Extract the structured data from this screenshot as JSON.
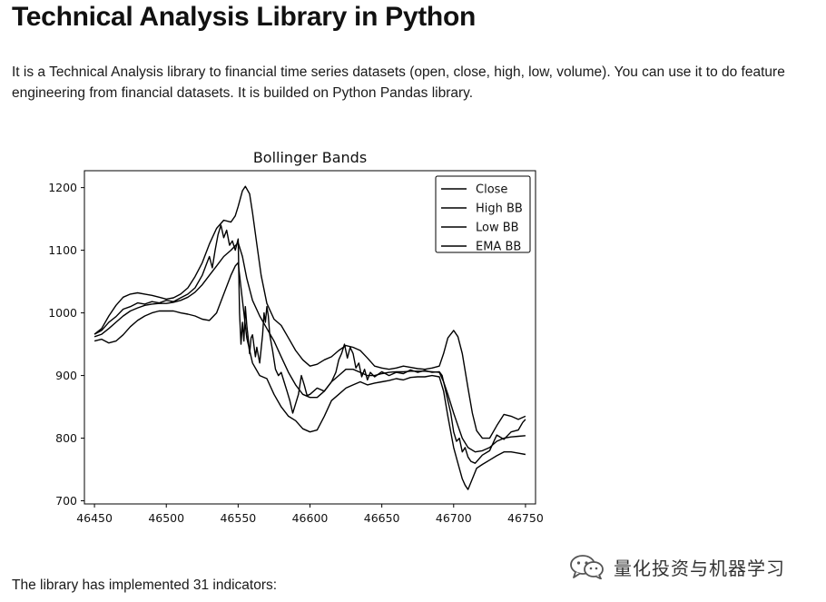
{
  "page": {
    "title": "Technical Analysis Library in Python",
    "intro": "It is a Technical Analysis library to financial time series datasets (open, close, high, low, volume). You can use it to do feature engineering from financial datasets. It is builded on Python Pandas library.",
    "footer": "The library has implemented 31 indicators:"
  },
  "watermark": {
    "text": "量化投资与机器学习",
    "icon": "wechat-icon"
  },
  "colors": {
    "text": "#111111",
    "line": "#000000",
    "background": "#ffffff"
  },
  "chart_data": {
    "type": "line",
    "title": "Bollinger Bands",
    "xlabel": "",
    "ylabel": "",
    "xlim": [
      46443,
      46757
    ],
    "ylim": [
      695,
      1227
    ],
    "xticks": [
      46450,
      46500,
      46550,
      46600,
      46650,
      46700,
      46750
    ],
    "yticks": [
      700,
      800,
      900,
      1000,
      1100,
      1200
    ],
    "grid": false,
    "legend_position": "top-right",
    "series": [
      {
        "name": "Close",
        "points": [
          [
            46450,
            966
          ],
          [
            46455,
            972
          ],
          [
            46460,
            985
          ],
          [
            46465,
            994
          ],
          [
            46470,
            1006
          ],
          [
            46475,
            1010
          ],
          [
            46480,
            1016
          ],
          [
            46485,
            1014
          ],
          [
            46490,
            1018
          ],
          [
            46495,
            1016
          ],
          [
            46500,
            1020
          ],
          [
            46505,
            1018
          ],
          [
            46510,
            1024
          ],
          [
            46515,
            1030
          ],
          [
            46520,
            1040
          ],
          [
            46525,
            1060
          ],
          [
            46528,
            1078
          ],
          [
            46530,
            1090
          ],
          [
            46532,
            1072
          ],
          [
            46534,
            1100
          ],
          [
            46536,
            1125
          ],
          [
            46538,
            1140
          ],
          [
            46540,
            1120
          ],
          [
            46542,
            1132
          ],
          [
            46544,
            1108
          ],
          [
            46546,
            1115
          ],
          [
            46548,
            1100
          ],
          [
            46550,
            1118
          ],
          [
            46551,
            1000
          ],
          [
            46552,
            950
          ],
          [
            46553,
            985
          ],
          [
            46554,
            955
          ],
          [
            46555,
            1010
          ],
          [
            46556,
            980
          ],
          [
            46557,
            960
          ],
          [
            46558,
            935
          ],
          [
            46559,
            960
          ],
          [
            46560,
            965
          ],
          [
            46562,
            930
          ],
          [
            46563,
            945
          ],
          [
            46565,
            920
          ],
          [
            46567,
            965
          ],
          [
            46568,
            1000
          ],
          [
            46569,
            985
          ],
          [
            46570,
            1010
          ],
          [
            46571,
            995
          ],
          [
            46572,
            965
          ],
          [
            46574,
            940
          ],
          [
            46576,
            910
          ],
          [
            46578,
            900
          ],
          [
            46580,
            905
          ],
          [
            46582,
            890
          ],
          [
            46584,
            875
          ],
          [
            46586,
            860
          ],
          [
            46588,
            840
          ],
          [
            46590,
            855
          ],
          [
            46592,
            870
          ],
          [
            46594,
            900
          ],
          [
            46596,
            885
          ],
          [
            46598,
            868
          ],
          [
            46600,
            870
          ],
          [
            46605,
            880
          ],
          [
            46610,
            875
          ],
          [
            46615,
            890
          ],
          [
            46618,
            905
          ],
          [
            46620,
            925
          ],
          [
            46622,
            935
          ],
          [
            46624,
            950
          ],
          [
            46626,
            928
          ],
          [
            46628,
            945
          ],
          [
            46630,
            935
          ],
          [
            46632,
            912
          ],
          [
            46634,
            920
          ],
          [
            46636,
            898
          ],
          [
            46638,
            910
          ],
          [
            46640,
            893
          ],
          [
            46642,
            905
          ],
          [
            46645,
            898
          ],
          [
            46650,
            906
          ],
          [
            46655,
            900
          ],
          [
            46660,
            905
          ],
          [
            46665,
            903
          ],
          [
            46670,
            909
          ],
          [
            46675,
            905
          ],
          [
            46680,
            908
          ],
          [
            46685,
            905
          ],
          [
            46690,
            906
          ],
          [
            46692,
            900
          ],
          [
            46694,
            880
          ],
          [
            46696,
            860
          ],
          [
            46698,
            840
          ],
          [
            46700,
            810
          ],
          [
            46702,
            795
          ],
          [
            46704,
            800
          ],
          [
            46706,
            778
          ],
          [
            46708,
            785
          ],
          [
            46710,
            770
          ],
          [
            46712,
            763
          ],
          [
            46715,
            760
          ],
          [
            46720,
            773
          ],
          [
            46725,
            780
          ],
          [
            46730,
            805
          ],
          [
            46735,
            798
          ],
          [
            46740,
            810
          ],
          [
            46745,
            813
          ],
          [
            46748,
            825
          ],
          [
            46750,
            830
          ]
        ]
      },
      {
        "name": "High BB",
        "points": [
          [
            46450,
            966
          ],
          [
            46455,
            975
          ],
          [
            46460,
            995
          ],
          [
            46465,
            1012
          ],
          [
            46470,
            1025
          ],
          [
            46475,
            1030
          ],
          [
            46480,
            1032
          ],
          [
            46485,
            1030
          ],
          [
            46490,
            1028
          ],
          [
            46495,
            1025
          ],
          [
            46500,
            1022
          ],
          [
            46505,
            1024
          ],
          [
            46510,
            1030
          ],
          [
            46515,
            1040
          ],
          [
            46520,
            1058
          ],
          [
            46525,
            1080
          ],
          [
            46530,
            1110
          ],
          [
            46535,
            1135
          ],
          [
            46540,
            1148
          ],
          [
            46545,
            1145
          ],
          [
            46548,
            1155
          ],
          [
            46550,
            1170
          ],
          [
            46553,
            1195
          ],
          [
            46555,
            1202
          ],
          [
            46558,
            1190
          ],
          [
            46560,
            1160
          ],
          [
            46563,
            1110
          ],
          [
            46566,
            1060
          ],
          [
            46570,
            1015
          ],
          [
            46575,
            990
          ],
          [
            46580,
            980
          ],
          [
            46585,
            960
          ],
          [
            46590,
            940
          ],
          [
            46595,
            925
          ],
          [
            46600,
            915
          ],
          [
            46605,
            918
          ],
          [
            46610,
            925
          ],
          [
            46615,
            930
          ],
          [
            46620,
            940
          ],
          [
            46625,
            948
          ],
          [
            46630,
            945
          ],
          [
            46635,
            940
          ],
          [
            46640,
            928
          ],
          [
            46645,
            915
          ],
          [
            46650,
            912
          ],
          [
            46655,
            910
          ],
          [
            46660,
            912
          ],
          [
            46665,
            915
          ],
          [
            46670,
            913
          ],
          [
            46675,
            911
          ],
          [
            46680,
            910
          ],
          [
            46685,
            912
          ],
          [
            46690,
            915
          ],
          [
            46693,
            935
          ],
          [
            46696,
            960
          ],
          [
            46700,
            972
          ],
          [
            46703,
            962
          ],
          [
            46706,
            935
          ],
          [
            46710,
            880
          ],
          [
            46713,
            840
          ],
          [
            46716,
            812
          ],
          [
            46720,
            800
          ],
          [
            46725,
            800
          ],
          [
            46730,
            820
          ],
          [
            46735,
            838
          ],
          [
            46740,
            835
          ],
          [
            46745,
            830
          ],
          [
            46750,
            835
          ]
        ]
      },
      {
        "name": "Low BB",
        "points": [
          [
            46450,
            955
          ],
          [
            46455,
            958
          ],
          [
            46460,
            952
          ],
          [
            46465,
            955
          ],
          [
            46470,
            965
          ],
          [
            46475,
            978
          ],
          [
            46480,
            988
          ],
          [
            46485,
            995
          ],
          [
            46490,
            1000
          ],
          [
            46495,
            1003
          ],
          [
            46500,
            1003
          ],
          [
            46505,
            1003
          ],
          [
            46510,
            1000
          ],
          [
            46515,
            998
          ],
          [
            46520,
            995
          ],
          [
            46525,
            990
          ],
          [
            46530,
            988
          ],
          [
            46535,
            1000
          ],
          [
            46540,
            1030
          ],
          [
            46545,
            1060
          ],
          [
            46548,
            1075
          ],
          [
            46550,
            1080
          ],
          [
            46553,
            1020
          ],
          [
            46556,
            960
          ],
          [
            46560,
            920
          ],
          [
            46565,
            900
          ],
          [
            46570,
            895
          ],
          [
            46575,
            870
          ],
          [
            46580,
            850
          ],
          [
            46585,
            835
          ],
          [
            46590,
            828
          ],
          [
            46595,
            815
          ],
          [
            46600,
            810
          ],
          [
            46605,
            813
          ],
          [
            46610,
            835
          ],
          [
            46615,
            860
          ],
          [
            46620,
            870
          ],
          [
            46625,
            880
          ],
          [
            46630,
            885
          ],
          [
            46635,
            890
          ],
          [
            46640,
            885
          ],
          [
            46645,
            888
          ],
          [
            46650,
            890
          ],
          [
            46655,
            892
          ],
          [
            46660,
            895
          ],
          [
            46665,
            893
          ],
          [
            46670,
            897
          ],
          [
            46675,
            898
          ],
          [
            46680,
            898
          ],
          [
            46685,
            900
          ],
          [
            46690,
            898
          ],
          [
            46693,
            875
          ],
          [
            46696,
            835
          ],
          [
            46700,
            785
          ],
          [
            46703,
            760
          ],
          [
            46706,
            735
          ],
          [
            46708,
            725
          ],
          [
            46710,
            718
          ],
          [
            46713,
            735
          ],
          [
            46716,
            752
          ],
          [
            46720,
            758
          ],
          [
            46725,
            765
          ],
          [
            46730,
            772
          ],
          [
            46735,
            778
          ],
          [
            46740,
            778
          ],
          [
            46745,
            776
          ],
          [
            46750,
            774
          ]
        ]
      },
      {
        "name": "EMA BB",
        "points": [
          [
            46450,
            962
          ],
          [
            46455,
            966
          ],
          [
            46460,
            975
          ],
          [
            46465,
            985
          ],
          [
            46470,
            995
          ],
          [
            46475,
            1003
          ],
          [
            46480,
            1008
          ],
          [
            46485,
            1012
          ],
          [
            46490,
            1014
          ],
          [
            46495,
            1015
          ],
          [
            46500,
            1015
          ],
          [
            46505,
            1017
          ],
          [
            46510,
            1020
          ],
          [
            46515,
            1025
          ],
          [
            46520,
            1033
          ],
          [
            46525,
            1045
          ],
          [
            46530,
            1060
          ],
          [
            46535,
            1075
          ],
          [
            46540,
            1090
          ],
          [
            46545,
            1100
          ],
          [
            46550,
            1112
          ],
          [
            46553,
            1090
          ],
          [
            46556,
            1055
          ],
          [
            46560,
            1020
          ],
          [
            46565,
            995
          ],
          [
            46570,
            975
          ],
          [
            46575,
            955
          ],
          [
            46580,
            930
          ],
          [
            46585,
            905
          ],
          [
            46590,
            885
          ],
          [
            46595,
            870
          ],
          [
            46600,
            865
          ],
          [
            46605,
            865
          ],
          [
            46610,
            875
          ],
          [
            46615,
            890
          ],
          [
            46620,
            900
          ],
          [
            46625,
            910
          ],
          [
            46630,
            910
          ],
          [
            46635,
            905
          ],
          [
            46640,
            900
          ],
          [
            46645,
            900
          ],
          [
            46650,
            903
          ],
          [
            46655,
            905
          ],
          [
            46660,
            906
          ],
          [
            46665,
            906
          ],
          [
            46670,
            907
          ],
          [
            46675,
            907
          ],
          [
            46680,
            907
          ],
          [
            46685,
            906
          ],
          [
            46690,
            905
          ],
          [
            46693,
            890
          ],
          [
            46696,
            870
          ],
          [
            46700,
            840
          ],
          [
            46703,
            820
          ],
          [
            46706,
            800
          ],
          [
            46710,
            785
          ],
          [
            46715,
            778
          ],
          [
            46720,
            780
          ],
          [
            46725,
            785
          ],
          [
            46730,
            795
          ],
          [
            46735,
            800
          ],
          [
            46740,
            802
          ],
          [
            46745,
            803
          ],
          [
            46750,
            804
          ]
        ]
      }
    ]
  }
}
